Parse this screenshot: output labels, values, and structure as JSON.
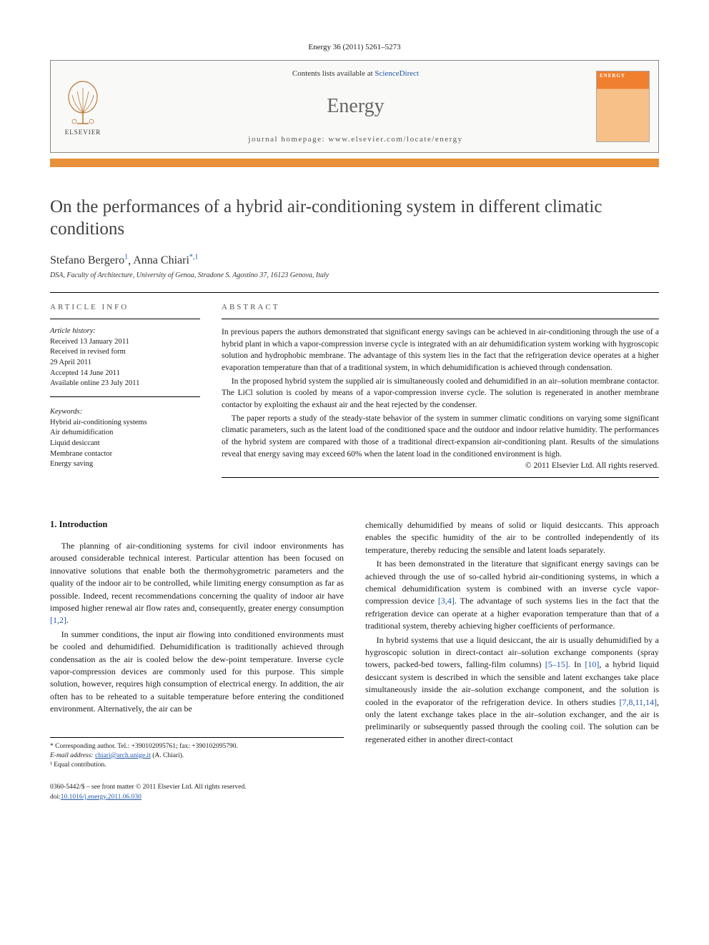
{
  "citation": "Energy 36 (2011) 5261–5273",
  "header": {
    "contents_prefix": "Contents lists available at ",
    "contents_link": "ScienceDirect",
    "journal": "Energy",
    "homepage_prefix": "journal homepage: ",
    "homepage_url": "www.elsevier.com/locate/energy",
    "publisher": "ELSEVIER",
    "cover_title": "ENERGY"
  },
  "title": "On the performances of a hybrid air-conditioning system in different climatic conditions",
  "authors": [
    {
      "name": "Stefano Bergero",
      "marks": "1"
    },
    {
      "name": "Anna Chiari",
      "marks": "*,1"
    }
  ],
  "affiliation": "DSA, Faculty of Architecture, University of Genoa, Stradone S. Agostino 37, 16123 Genova, Italy",
  "article_info": {
    "header": "ARTICLE INFO",
    "history_label": "Article history:",
    "history": [
      "Received 13 January 2011",
      "Received in revised form",
      "29 April 2011",
      "Accepted 14 June 2011",
      "Available online 23 July 2011"
    ],
    "keywords_label": "Keywords:",
    "keywords": [
      "Hybrid air-conditioning systems",
      "Air dehumidification",
      "Liquid desiccant",
      "Membrane contactor",
      "Energy saving"
    ]
  },
  "abstract": {
    "header": "ABSTRACT",
    "paragraphs": [
      "In previous papers the authors demonstrated that significant energy savings can be achieved in air-conditioning through the use of a hybrid plant in which a vapor-compression inverse cycle is integrated with an air dehumidification system working with hygroscopic solution and hydrophobic membrane. The advantage of this system lies in the fact that the refrigeration device operates at a higher evaporation temperature than that of a traditional system, in which dehumidification is achieved through condensation.",
      "In the proposed hybrid system the supplied air is simultaneously cooled and dehumidified in an air–solution membrane contactor. The LiCl solution is cooled by means of a vapor-compression inverse cycle. The solution is regenerated in another membrane contactor by exploiting the exhaust air and the heat rejected by the condenser.",
      "The paper reports a study of the steady-state behavior of the system in summer climatic conditions on varying some significant climatic parameters, such as the latent load of the conditioned space and the outdoor and indoor relative humidity. The performances of the hybrid system are compared with those of a traditional direct-expansion air-conditioning plant. Results of the simulations reveal that energy saving may exceed 60% when the latent load in the conditioned environment is high."
    ],
    "copyright": "© 2011 Elsevier Ltd. All rights reserved."
  },
  "body": {
    "heading": "1. Introduction",
    "left_paragraphs": [
      "The planning of air-conditioning systems for civil indoor environments has aroused considerable technical interest. Particular attention has been focused on innovative solutions that enable both the thermohygrometric parameters and the quality of the indoor air to be controlled, while limiting energy consumption as far as possible. Indeed, recent recommendations concerning the quality of indoor air have imposed higher renewal air flow rates and, consequently, greater energy consumption [1,2].",
      "In summer conditions, the input air flowing into conditioned environments must be cooled and dehumidified. Dehumidification is traditionally achieved through condensation as the air is cooled below the dew-point temperature. Inverse cycle vapor-compression devices are commonly used for this purpose. This simple solution, however, requires high consumption of electrical energy. In addition, the air often has to be reheated to a suitable temperature before entering the conditioned environment. Alternatively, the air can be"
    ],
    "right_paragraphs": [
      "chemically dehumidified by means of solid or liquid desiccants. This approach enables the specific humidity of the air to be controlled independently of its temperature, thereby reducing the sensible and latent loads separately.",
      "It has been demonstrated in the literature that significant energy savings can be achieved through the use of so-called hybrid air-conditioning systems, in which a chemical dehumidification system is combined with an inverse cycle vapor-compression device [3,4]. The advantage of such systems lies in the fact that the refrigeration device can operate at a higher evaporation temperature than that of a traditional system, thereby achieving higher coefficients of performance.",
      "In hybrid systems that use a liquid desiccant, the air is usually dehumidified by a hygroscopic solution in direct-contact air–solution exchange components (spray towers, packed-bed towers, falling-film columns) [5–15]. In [10], a hybrid liquid desiccant system is described in which the sensible and latent exchanges take place simultaneously inside the air–solution exchange component, and the solution is cooled in the evaporator of the refrigeration device. In others studies [7,8,11,14], only the latent exchange takes place in the air–solution exchanger, and the air is preliminarily or subsequently passed through the cooling coil. The solution can be regenerated either in another direct-contact"
    ],
    "refs": {
      "r12": "[1,2]",
      "r34": "[3,4]",
      "r515": "[5–15]",
      "r10": "[10]",
      "r781114": "[7,8,11,14]"
    }
  },
  "footnotes": {
    "corresponding": "* Corresponding author. Tel.: +390102095761; fax: +390102095790.",
    "email_label": "E-mail address:",
    "email": "chiari@arch.unige.it",
    "email_who": "(A. Chiari).",
    "equal": "¹ Equal contribution."
  },
  "footer": {
    "line1": "0360-5442/$ – see front matter © 2011 Elsevier Ltd. All rights reserved.",
    "doi_prefix": "doi:",
    "doi": "10.1016/j.energy.2011.06.030"
  },
  "colors": {
    "accent_orange": "#e8903a",
    "link_blue": "#2058a8",
    "text": "#1a1a1a",
    "title_gray": "#404040"
  }
}
